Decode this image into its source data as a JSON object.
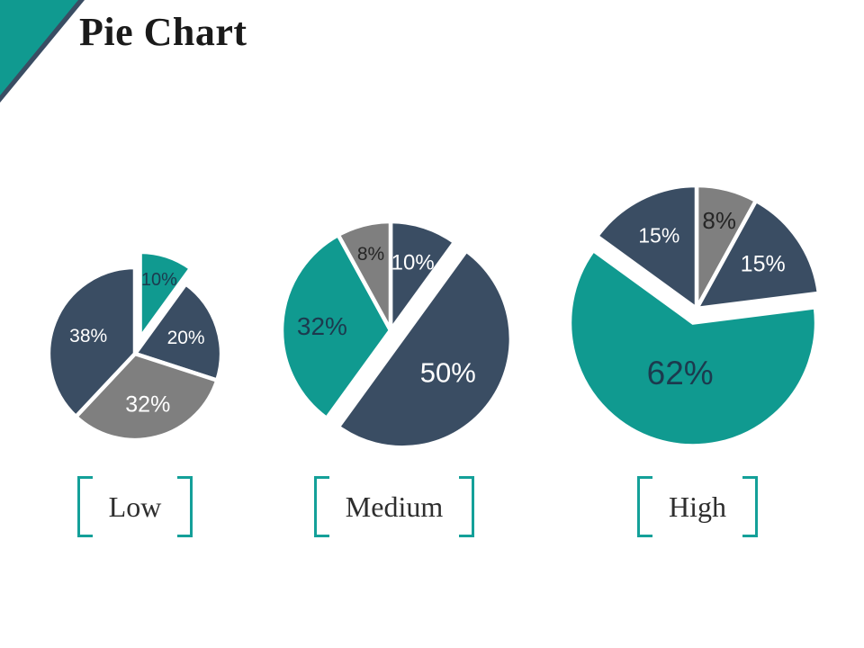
{
  "slide": {
    "title": "Pie Chart",
    "background": "#FFFFFF"
  },
  "colors": {
    "teal": "#109A90",
    "navy": "#3A4D63",
    "gray": "#7F7F7F",
    "white": "#FFFFFF",
    "bracket": "#14A099",
    "label_text": "#2E2E2E",
    "title_text": "#1A1A1A",
    "corner_front": "#109A90",
    "corner_edge": "#3A4D63"
  },
  "chart_data": [
    {
      "type": "pie",
      "title": "Low",
      "units": "percent",
      "start_angle": 0,
      "clockwise": true,
      "center": [
        150,
        393
      ],
      "radius": 96,
      "slices": [
        {
          "value": 10,
          "label": "10%",
          "color_key": "teal",
          "label_color": "#1C3A4E",
          "explode": 18,
          "label_r": 0.72,
          "label_size": 20
        },
        {
          "value": 20,
          "label": "20%",
          "color_key": "navy",
          "label_color": "#FFFFFF",
          "explode": 0,
          "label_r": 0.62,
          "label_size": 21
        },
        {
          "value": 32,
          "label": "32%",
          "color_key": "gray",
          "label_color": "#FFFFFF",
          "explode": 0,
          "label_r": 0.6,
          "label_size": 25
        },
        {
          "value": 38,
          "label": "38%",
          "color_key": "navy",
          "label_color": "#FFFFFF",
          "explode": 0,
          "label_r": 0.58,
          "label_size": 21
        }
      ]
    },
    {
      "type": "pie",
      "title": "Medium",
      "units": "percent",
      "start_angle": 0,
      "clockwise": true,
      "center": [
        434,
        367
      ],
      "radius": 121,
      "slices": [
        {
          "value": 10,
          "label": "10%",
          "color_key": "navy",
          "label_color": "#FFFFFF",
          "explode": 0,
          "label_r": 0.66,
          "label_size": 24
        },
        {
          "value": 50,
          "label": "50%",
          "color_key": "navy",
          "label_color": "#FFFFFF",
          "explode": 16,
          "label_r": 0.52,
          "label_size": 31
        },
        {
          "value": 32,
          "label": "32%",
          "color_key": "teal",
          "label_color": "#1C3A4E",
          "explode": 0,
          "label_r": 0.63,
          "label_size": 28
        },
        {
          "value": 8,
          "label": "8%",
          "color_key": "gray",
          "label_color": "#262626",
          "explode": 0,
          "label_r": 0.73,
          "label_size": 21
        }
      ]
    },
    {
      "type": "pie",
      "title": "High",
      "units": "percent",
      "start_angle": 0,
      "clockwise": true,
      "center": [
        774,
        343
      ],
      "radius": 137,
      "slices": [
        {
          "value": 8,
          "label": "8%",
          "color_key": "gray",
          "label_color": "#262626",
          "explode": 0,
          "label_r": 0.74,
          "label_size": 26
        },
        {
          "value": 15,
          "label": "15%",
          "color_key": "navy",
          "label_color": "#FFFFFF",
          "explode": 0,
          "label_r": 0.65,
          "label_size": 25
        },
        {
          "value": 62,
          "label": "62%",
          "color_key": "teal",
          "label_color": "#1C3A4E",
          "explode": 16,
          "label_r": 0.42,
          "label_size": 37
        },
        {
          "value": 15,
          "label": "15%",
          "color_key": "navy",
          "label_color": "#FFFFFF",
          "explode": 0,
          "label_r": 0.67,
          "label_size": 23
        }
      ]
    }
  ]
}
